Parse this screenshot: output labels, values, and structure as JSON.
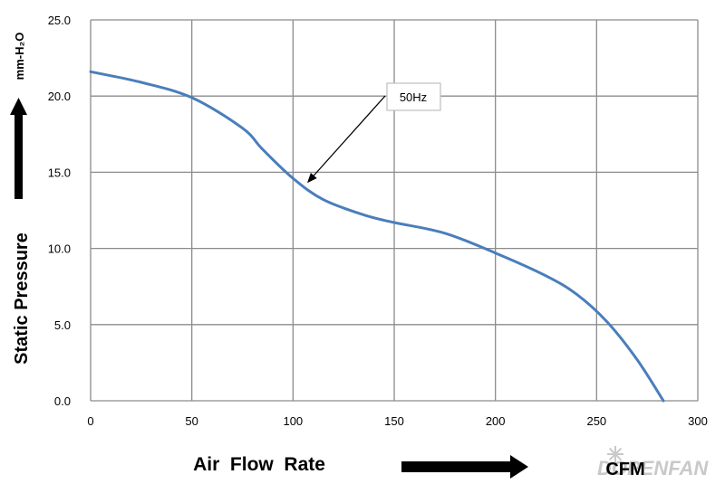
{
  "chart_data": {
    "type": "line",
    "xlim": [
      0,
      300
    ],
    "ylim": [
      0,
      25
    ],
    "xticks": [
      "0",
      "50",
      "100",
      "150",
      "200",
      "250",
      "300"
    ],
    "yticks": [
      "0.0",
      "5.0",
      "10.0",
      "15.0",
      "20.0",
      "25.0"
    ],
    "xlabel": "Air  Flow  Rate",
    "xunit": "CFM",
    "ylabel": "Static  Pressure",
    "yunit": "mm-H₂O",
    "grid": true,
    "series": [
      {
        "name": "50Hz",
        "color": "#4a7ebb",
        "x": [
          0,
          25,
          50,
          75,
          85,
          100,
          115,
          135,
          150,
          175,
          200,
          225,
          240,
          255,
          270,
          283
        ],
        "y": [
          21.6,
          20.9,
          19.9,
          17.9,
          16.5,
          14.6,
          13.2,
          12.2,
          11.7,
          11.0,
          9.7,
          8.2,
          7.0,
          5.2,
          2.7,
          0
        ]
      }
    ],
    "annotation": {
      "text": "50Hz",
      "x": 107,
      "y": 14.3
    }
  },
  "watermark": "DOPENFAN"
}
